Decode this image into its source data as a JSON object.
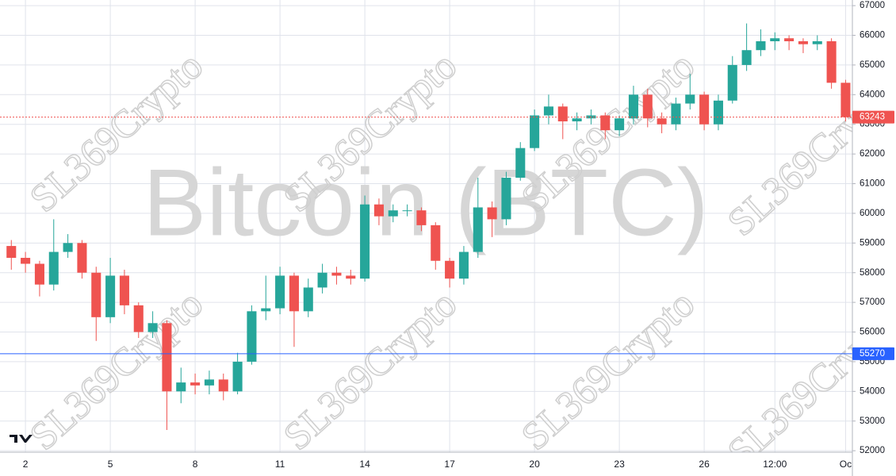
{
  "chart_data": {
    "type": "candlestick",
    "title": "Bitcoin (BTC)",
    "watermark": "SL369Crypto",
    "up_color": "#26a69a",
    "down_color": "#ef5350",
    "grid": true,
    "x": [
      1.5,
      2,
      2.5,
      3,
      3.5,
      4,
      4.5,
      5,
      5.5,
      6,
      6.5,
      7,
      7.5,
      8,
      8.5,
      9,
      9.5,
      10,
      10.5,
      11,
      11.5,
      12,
      12.5,
      13,
      13.5,
      14,
      14.5,
      15,
      15.5,
      16,
      16.5,
      17,
      17.5,
      18,
      18.5,
      19,
      19.5,
      20,
      20.5,
      21,
      21.5,
      22,
      22.5,
      23,
      23.5,
      24,
      24.5,
      25,
      25.5,
      26,
      26.5,
      27,
      27.5,
      28,
      28.5,
      29,
      29.5,
      30,
      30.5,
      31
    ],
    "open": [
      58900,
      58500,
      58300,
      57600,
      58700,
      59000,
      58000,
      56500,
      57900,
      56900,
      56000,
      56300,
      54000,
      54300,
      54200,
      54400,
      54000,
      55000,
      56700,
      56800,
      57900,
      56700,
      57500,
      58000,
      57900,
      57800,
      60300,
      59900,
      60100,
      60100,
      59600,
      58400,
      57800,
      58700,
      60200,
      59800,
      61200,
      62200,
      63300,
      63600,
      63100,
      63200,
      63300,
      62800,
      63200,
      64000,
      63200,
      63000,
      63700,
      64000,
      63000,
      63800,
      65000,
      65500,
      65800,
      65900,
      65800,
      65700,
      65800,
      64400
    ],
    "high": [
      59100,
      58700,
      58400,
      59800,
      59300,
      59100,
      58200,
      58500,
      58100,
      57000,
      56700,
      56400,
      54800,
      54600,
      54700,
      54600,
      55300,
      56900,
      57900,
      58200,
      58000,
      57800,
      58300,
      58200,
      58100,
      60600,
      60500,
      60300,
      60300,
      60200,
      59700,
      58500,
      58900,
      61200,
      60400,
      61400,
      62400,
      63500,
      64000,
      63700,
      63400,
      63500,
      63400,
      63300,
      64300,
      64200,
      63400,
      63900,
      64700,
      64100,
      64000,
      65300,
      66400,
      66200,
      66100,
      66000,
      65900,
      66000,
      65900,
      64500
    ],
    "low": [
      58100,
      58000,
      57200,
      57400,
      58500,
      57800,
      55700,
      56300,
      56600,
      55800,
      55800,
      52700,
      53600,
      53900,
      53900,
      53700,
      53900,
      54900,
      56400,
      56600,
      55500,
      56500,
      57300,
      57600,
      57600,
      57700,
      59600,
      59700,
      59900,
      59400,
      58100,
      57500,
      57600,
      58500,
      59200,
      59600,
      61100,
      62100,
      63000,
      62500,
      62800,
      63000,
      62500,
      62600,
      63000,
      62900,
      62700,
      62800,
      63500,
      62800,
      62800,
      63700,
      64800,
      65300,
      65500,
      65500,
      65400,
      65500,
      64200,
      63100
    ],
    "close": [
      58500,
      58300,
      57600,
      58700,
      59000,
      58000,
      56500,
      57900,
      56900,
      56000,
      56300,
      54000,
      54300,
      54200,
      54400,
      54000,
      55000,
      56700,
      56800,
      57900,
      56700,
      57500,
      58000,
      57900,
      57800,
      60300,
      59900,
      60100,
      60100,
      59600,
      58400,
      57800,
      58700,
      60200,
      59800,
      61200,
      62200,
      63300,
      63600,
      63100,
      63200,
      63300,
      62800,
      63200,
      64000,
      63200,
      63000,
      63700,
      64000,
      63000,
      63800,
      65000,
      65500,
      65800,
      65900,
      65800,
      65700,
      65800,
      64400,
      63243
    ],
    "xlim": [
      1.1,
      31.24
    ],
    "xticks": [
      2,
      5,
      8,
      11,
      14,
      17,
      20,
      23,
      26,
      {
        "value": 28.5,
        "label": "12:00"
      },
      {
        "value": 31,
        "label": "Oc"
      }
    ],
    "ylim": [
      51950,
      67190
    ],
    "yticks": [
      52000,
      53000,
      54000,
      55000,
      56000,
      57000,
      58000,
      59000,
      60000,
      61000,
      62000,
      63000,
      64000,
      65000,
      66000,
      67000
    ],
    "price_lines": [
      {
        "value": 63243,
        "color": "#ef5350",
        "style": "dotted"
      },
      {
        "value": 55270,
        "color": "#2962ff",
        "style": "solid"
      }
    ]
  }
}
